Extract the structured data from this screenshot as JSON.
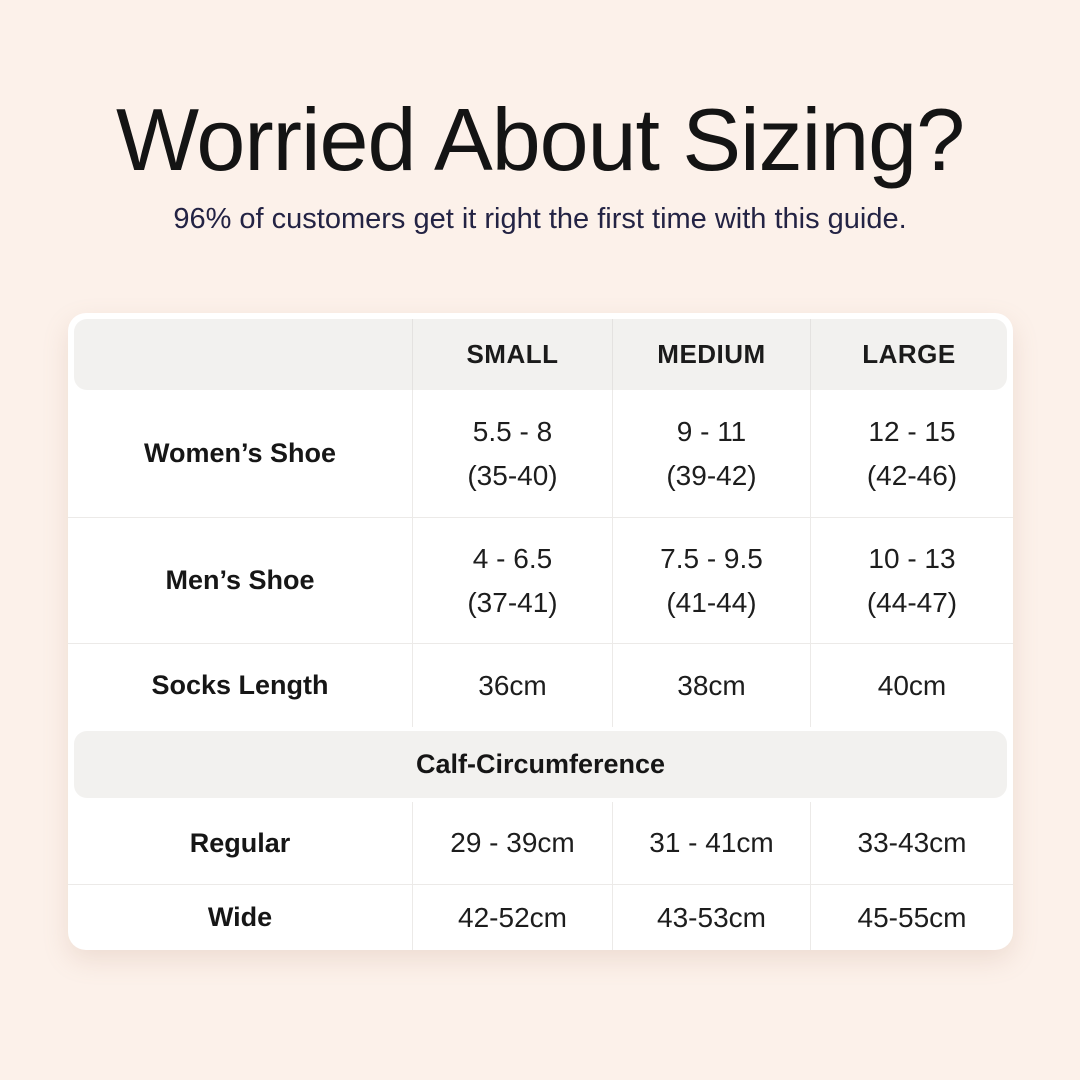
{
  "header": {
    "title": "Worried About Sizing?",
    "subtitle": "96% of customers get it right the first time with this guide."
  },
  "colors": {
    "page_background": "#fcf1ea",
    "card_background": "#ffffff",
    "band_background": "#f2f1ef",
    "divider": "#eceae8",
    "title_text": "#141414",
    "subtitle_text": "#232344",
    "body_text": "#1d1d1d"
  },
  "chart_data": {
    "type": "table",
    "title": "Worried About Sizing?",
    "subtitle": "96% of customers get it right the first time with this guide.",
    "columns": [
      "SMALL",
      "MEDIUM",
      "LARGE"
    ],
    "rows": [
      {
        "label": "Women’s Shoe",
        "cells": [
          {
            "line1": "5.5 - 8",
            "line2": "(35-40)"
          },
          {
            "line1": "9 - 11",
            "line2": "(39-42)"
          },
          {
            "line1": "12 - 15",
            "line2": "(42-46)"
          }
        ]
      },
      {
        "label": "Men’s Shoe",
        "cells": [
          {
            "line1": "4 - 6.5",
            "line2": "(37-41)"
          },
          {
            "line1": "7.5 - 9.5",
            "line2": "(41-44)"
          },
          {
            "line1": "10 - 13",
            "line2": "(44-47)"
          }
        ]
      },
      {
        "label": "Socks Length",
        "cells": [
          {
            "line1": "36cm"
          },
          {
            "line1": "38cm"
          },
          {
            "line1": "40cm"
          }
        ]
      }
    ],
    "section_header": "Calf-Circumference",
    "section_rows": [
      {
        "label": "Regular",
        "cells": [
          {
            "line1": "29 - 39cm"
          },
          {
            "line1": "31 - 41cm"
          },
          {
            "line1": "33-43cm"
          }
        ]
      },
      {
        "label": "Wide",
        "cells": [
          {
            "line1": "42-52cm"
          },
          {
            "line1": "43-53cm"
          },
          {
            "line1": "45-55cm"
          }
        ]
      }
    ]
  }
}
